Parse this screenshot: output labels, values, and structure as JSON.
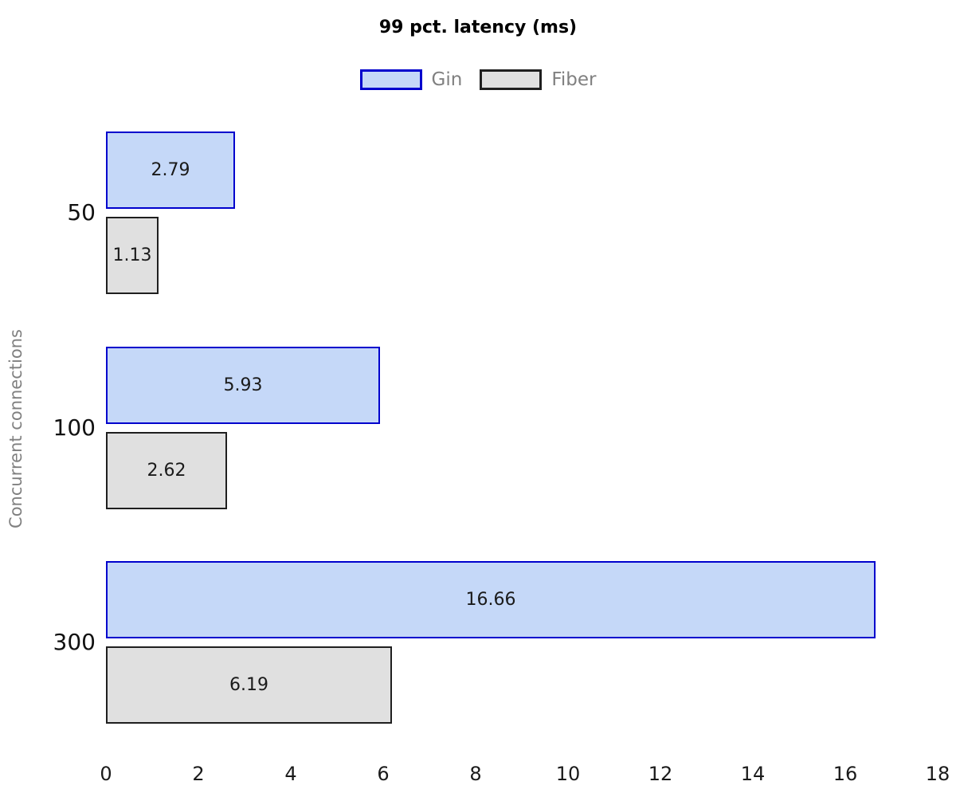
{
  "chart_data": {
    "type": "bar",
    "orientation": "horizontal",
    "title": "99 pct. latency (ms)",
    "xlabel": "",
    "ylabel": "Concurrent connections",
    "categories": [
      "50",
      "100",
      "300"
    ],
    "series": [
      {
        "name": "Gin",
        "values": [
          2.79,
          5.93,
          16.66
        ],
        "value_labels": [
          "2.79",
          "5.93",
          "16.66"
        ],
        "fill": "#c5d8f8",
        "border": "#0000cd"
      },
      {
        "name": "Fiber",
        "values": [
          1.13,
          2.62,
          6.19
        ],
        "value_labels": [
          "1.13",
          "2.62",
          "6.19"
        ],
        "fill": "#e0e0e0",
        "border": "#1f1f1f"
      }
    ],
    "xlim": [
      0,
      18
    ],
    "xticks": [
      0,
      2,
      4,
      6,
      8,
      10,
      12,
      14,
      16,
      18
    ],
    "grid": false,
    "legend_position": "top-center",
    "background": "#ffffff",
    "text_colors": {
      "title": "#000000",
      "legend": "#808080",
      "axis_label": "#808080",
      "tick": "#1a1a1a",
      "value": "#1a1a1a",
      "category": "#111111"
    }
  }
}
